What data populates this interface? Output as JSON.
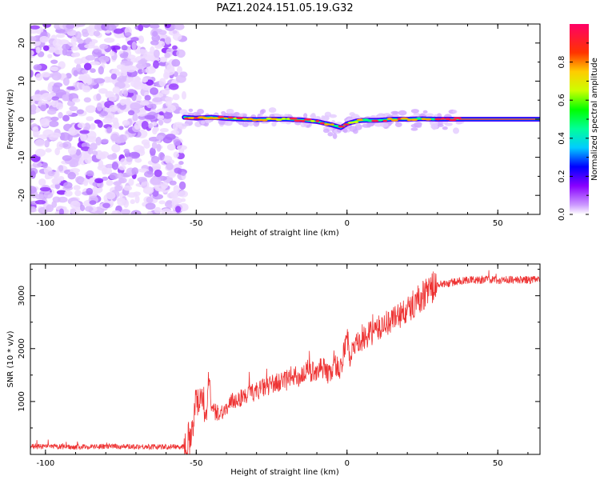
{
  "title": "PAZ1.2024.151.05.19.G32",
  "chart_data": [
    {
      "type": "heatmap",
      "xlabel": "Height of straight line (km)",
      "ylabel": "Frequency (Hz)",
      "xlim": [
        -105,
        64
      ],
      "ylim": [
        -25,
        25
      ],
      "xticks": [
        -100,
        -50,
        0,
        50
      ],
      "yticks": [
        -20,
        -10,
        0,
        10,
        20
      ],
      "colorbar": {
        "label": "Normalized spectral amplitude",
        "range": [
          0,
          1
        ],
        "ticks": [
          0.0,
          0.2,
          0.4,
          0.6,
          0.8
        ],
        "colormap": [
          "#ffffff",
          "#cc99ff",
          "#8800ff",
          "#0000ff",
          "#00ccff",
          "#00ff99",
          "#00ff00",
          "#ccff00",
          "#ffcc00",
          "#ff3300",
          "#ff0066"
        ]
      },
      "noise_region_x": [
        -105,
        -54
      ],
      "line_region_x": [
        -54,
        64
      ],
      "center_line": {
        "x": [
          -54,
          -50,
          -45,
          -40,
          -35,
          -30,
          -25,
          -20,
          -15,
          -10,
          -5,
          -2,
          0,
          3,
          5,
          10,
          15,
          20,
          25,
          30,
          35,
          40,
          50,
          64
        ],
        "y": [
          0.5,
          0.3,
          0.5,
          0.2,
          0.0,
          -0.1,
          0.0,
          0.0,
          -0.2,
          -0.6,
          -1.5,
          -2.2,
          -1.2,
          -0.5,
          -0.3,
          -0.3,
          0.0,
          0.0,
          0.1,
          0.0,
          0.0,
          0.0,
          0.0,
          0.0
        ]
      }
    },
    {
      "type": "line",
      "xlabel": "Height of straight line (km)",
      "ylabel": "SNR (10 * v/v)",
      "xlim": [
        -105,
        64
      ],
      "ylim": [
        0,
        3600
      ],
      "xticks": [
        -100,
        -50,
        0,
        50
      ],
      "yticks": [
        1000,
        2000,
        3000
      ],
      "color": "#ee3333",
      "series": [
        {
          "x": [
            -105,
            -90,
            -80,
            -70,
            -60,
            -54,
            -52,
            -50,
            -49,
            -48,
            -47,
            -46,
            -45,
            -44,
            -42,
            -40,
            -38,
            -36,
            -34,
            -32,
            -30,
            -28,
            -26,
            -24,
            -22,
            -20,
            -18,
            -16,
            -14,
            -12,
            -10,
            -8,
            -6,
            -4,
            -2,
            0,
            1,
            2,
            4,
            6,
            8,
            10,
            12,
            15,
            18,
            20,
            22,
            25,
            28,
            30,
            35,
            40,
            45,
            50,
            55,
            60,
            64
          ],
          "y": [
            150,
            140,
            150,
            150,
            140,
            150,
            350,
            1000,
            1100,
            1200,
            700,
            1300,
            900,
            800,
            800,
            850,
            1000,
            1050,
            1100,
            1150,
            1200,
            1250,
            1300,
            1350,
            1350,
            1400,
            1500,
            1450,
            1550,
            1550,
            1600,
            1650,
            1500,
            1700,
            1600,
            2300,
            1800,
            2000,
            2100,
            2200,
            2300,
            2350,
            2450,
            2550,
            2650,
            2700,
            2850,
            3000,
            3150,
            3200,
            3250,
            3300,
            3300,
            3300,
            3300,
            3300,
            3300
          ]
        }
      ]
    }
  ]
}
